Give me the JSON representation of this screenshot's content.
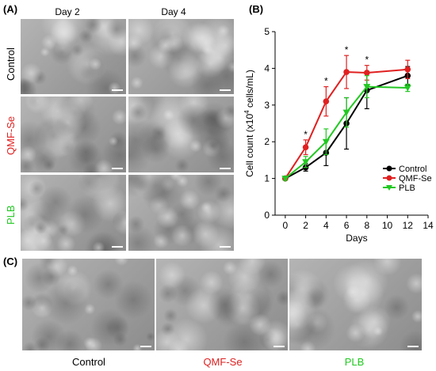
{
  "panels": {
    "a": {
      "label": "(A)",
      "columns": [
        "Day 2",
        "Day 4"
      ],
      "rows": [
        {
          "label": "Control",
          "color": "#000000"
        },
        {
          "label": "QMF-Se",
          "color": "#e02020"
        },
        {
          "label": "PLB",
          "color": "#22c822"
        }
      ]
    },
    "b": {
      "label": "(B)"
    },
    "c": {
      "label": "(C)",
      "labels": [
        {
          "label": "Control",
          "color": "#000000"
        },
        {
          "label": "QMF-Se",
          "color": "#e02020"
        },
        {
          "label": "PLB",
          "color": "#22c822"
        }
      ]
    }
  },
  "chart_data": {
    "type": "line",
    "xlabel": "Days",
    "ylabel_main": "Cell count (x10",
    "ylabel_sup": "4",
    "ylabel_tail": " cells/mL)",
    "xlim": [
      -1,
      14
    ],
    "ylim": [
      0,
      5
    ],
    "xticks": [
      0,
      2,
      4,
      6,
      8,
      10,
      12,
      14
    ],
    "yticks": [
      0,
      1,
      2,
      3,
      4,
      5
    ],
    "legend_position": "bottom-right",
    "significance_marks": [
      {
        "x": 2,
        "text": "*"
      },
      {
        "x": 4,
        "text": "*"
      },
      {
        "x": 6,
        "text": "*"
      },
      {
        "x": 8,
        "text": "*"
      }
    ],
    "series": [
      {
        "name": "Control",
        "color": "#000000",
        "marker": "circle",
        "x": [
          0,
          2,
          4,
          6,
          8,
          12
        ],
        "y": [
          1.0,
          1.3,
          1.7,
          2.5,
          3.4,
          3.8
        ],
        "err": [
          0.05,
          0.1,
          0.35,
          0.7,
          0.5,
          0.25
        ]
      },
      {
        "name": "QMF-Se",
        "color": "#e02020",
        "marker": "circle",
        "x": [
          0,
          2,
          4,
          6,
          8,
          12
        ],
        "y": [
          1.0,
          1.85,
          3.1,
          3.9,
          3.88,
          3.97
        ],
        "err": [
          0.05,
          0.2,
          0.4,
          0.45,
          0.2,
          0.25
        ]
      },
      {
        "name": "PLB",
        "color": "#22c822",
        "marker": "triangle-down",
        "x": [
          0,
          2,
          4,
          6,
          8,
          12
        ],
        "y": [
          1.0,
          1.45,
          2.0,
          2.8,
          3.5,
          3.47
        ],
        "err": [
          0.05,
          0.15,
          0.35,
          0.4,
          0.3,
          0.1
        ]
      }
    ]
  }
}
